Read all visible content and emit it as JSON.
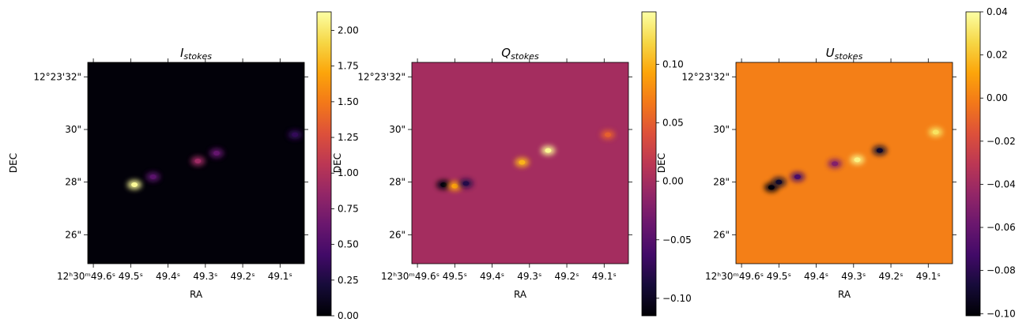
{
  "chart_data": [
    {
      "type": "heatmap",
      "title": "I",
      "title_sub": "stokes",
      "xlabel": "RA",
      "ylabel": "DEC",
      "x_ticks": [
        "12ʰ30ᵐ49.6ˢ",
        "49.5ˢ",
        "49.4ˢ",
        "49.3ˢ",
        "49.2ˢ",
        "49.1ˢ"
      ],
      "y_ticks": [
        "12°23'32\"",
        "30\"",
        "28\"",
        "26\""
      ],
      "colormap": "inferno",
      "colorbar_range": [
        0.0,
        2.13
      ],
      "colorbar_ticks": [
        "0.00",
        "0.25",
        "0.50",
        "0.75",
        "1.00",
        "1.25",
        "1.50",
        "1.75",
        "2.00"
      ],
      "background_value": 0.02,
      "features": [
        {
          "ra_s": 49.49,
          "dec_arcsec": 27.9,
          "value": 2.1
        },
        {
          "ra_s": 49.44,
          "dec_arcsec": 28.2,
          "value": 0.55
        },
        {
          "ra_s": 49.32,
          "dec_arcsec": 28.8,
          "value": 0.9
        },
        {
          "ra_s": 49.27,
          "dec_arcsec": 29.1,
          "value": 0.6
        },
        {
          "ra_s": 49.06,
          "dec_arcsec": 29.8,
          "value": 0.35
        }
      ]
    },
    {
      "type": "heatmap",
      "title": "Q",
      "title_sub": "stokes",
      "xlabel": "RA",
      "ylabel": "DEC",
      "x_ticks": [
        "12ʰ30ᵐ49.6ˢ",
        "49.5ˢ",
        "49.4ˢ",
        "49.3ˢ",
        "49.2ˢ",
        "49.1ˢ"
      ],
      "y_ticks": [
        "12°23'32\"",
        "30\"",
        "28\"",
        "26\""
      ],
      "colormap": "inferno",
      "colorbar_range": [
        -0.115,
        0.145
      ],
      "colorbar_ticks": [
        "−0.10",
        "−0.05",
        "0.00",
        "0.05",
        "0.10"
      ],
      "background_value": 0.0,
      "features": [
        {
          "ra_s": 49.53,
          "dec_arcsec": 27.9,
          "value": -0.11
        },
        {
          "ra_s": 49.5,
          "dec_arcsec": 27.85,
          "value": 0.09
        },
        {
          "ra_s": 49.47,
          "dec_arcsec": 27.95,
          "value": -0.08
        },
        {
          "ra_s": 49.32,
          "dec_arcsec": 28.75,
          "value": 0.1
        },
        {
          "ra_s": 49.25,
          "dec_arcsec": 29.2,
          "value": 0.14
        },
        {
          "ra_s": 49.09,
          "dec_arcsec": 29.8,
          "value": 0.05
        }
      ]
    },
    {
      "type": "heatmap",
      "title": "U",
      "title_sub": "stokes",
      "xlabel": "RA",
      "ylabel": "DEC",
      "x_ticks": [
        "12ʰ30ᵐ49.6ˢ",
        "49.5ˢ",
        "49.4ˢ",
        "49.3ˢ",
        "49.2ˢ",
        "49.1ˢ"
      ],
      "y_ticks": [
        "12°23'32\"",
        "30\"",
        "28\"",
        "26\""
      ],
      "colormap": "inferno",
      "colorbar_range": [
        -0.101,
        0.04
      ],
      "colorbar_ticks": [
        "−0.10",
        "−0.08",
        "−0.06",
        "−0.04",
        "−0.02",
        "0.00",
        "0.02",
        "0.04"
      ],
      "background_value": 0.0,
      "features": [
        {
          "ra_s": 49.52,
          "dec_arcsec": 27.8,
          "value": -0.1
        },
        {
          "ra_s": 49.5,
          "dec_arcsec": 28.0,
          "value": -0.09
        },
        {
          "ra_s": 49.45,
          "dec_arcsec": 28.2,
          "value": -0.07
        },
        {
          "ra_s": 49.35,
          "dec_arcsec": 28.7,
          "value": -0.05
        },
        {
          "ra_s": 49.29,
          "dec_arcsec": 28.85,
          "value": 0.035
        },
        {
          "ra_s": 49.23,
          "dec_arcsec": 29.2,
          "value": -0.09
        },
        {
          "ra_s": 49.08,
          "dec_arcsec": 29.9,
          "value": 0.03
        }
      ]
    }
  ]
}
